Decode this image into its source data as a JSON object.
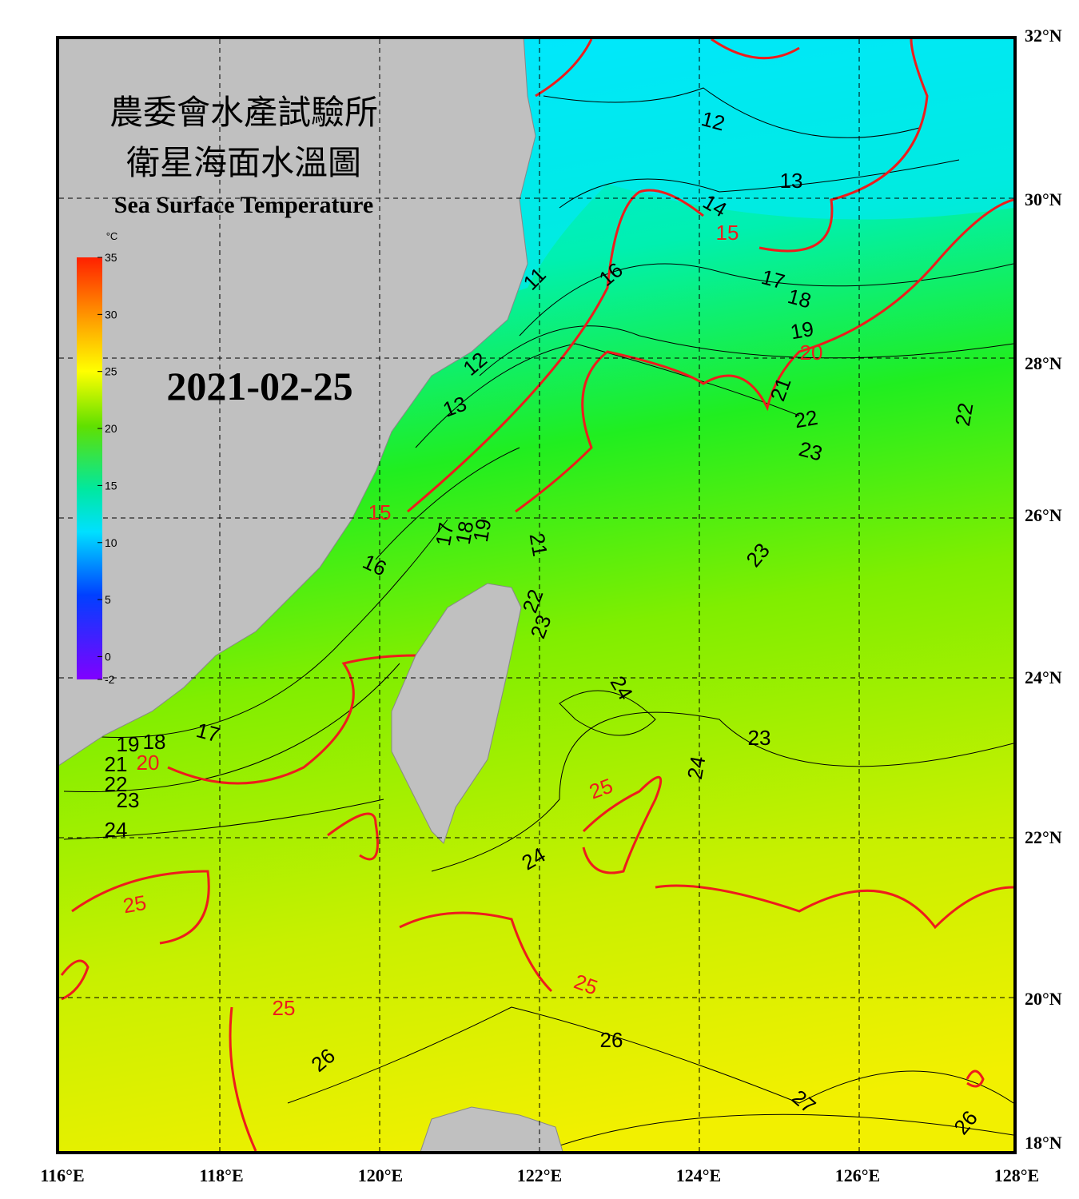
{
  "header": {
    "title_zh_1": "農委會水產試驗所",
    "title_zh_2": "衛星海面水溫圖",
    "title_en": "Sea Surface Temperature"
  },
  "date": "2021-02-25",
  "colorbar": {
    "unit": "°C",
    "ticks": [
      35,
      30,
      25,
      20,
      15,
      10,
      5,
      0,
      -2
    ]
  },
  "axes": {
    "x_labels": [
      "116°E",
      "118°E",
      "120°E",
      "122°E",
      "124°E",
      "126°E",
      "128°E"
    ],
    "y_labels": [
      "32°N",
      "30°N",
      "28°N",
      "26°N",
      "24°N",
      "22°N",
      "20°N",
      "18°N"
    ]
  },
  "contour_labels_red": [
    15,
    15,
    20,
    20,
    25,
    25,
    25,
    25
  ],
  "contour_labels_black": [
    12,
    13,
    14,
    16,
    17,
    18,
    19,
    11,
    12,
    13,
    21,
    22,
    23,
    22,
    17,
    18,
    19,
    21,
    16,
    23,
    22,
    23,
    24,
    23,
    24,
    17,
    19,
    18,
    21,
    22,
    23,
    24,
    24,
    26,
    26,
    27,
    26
  ]
}
